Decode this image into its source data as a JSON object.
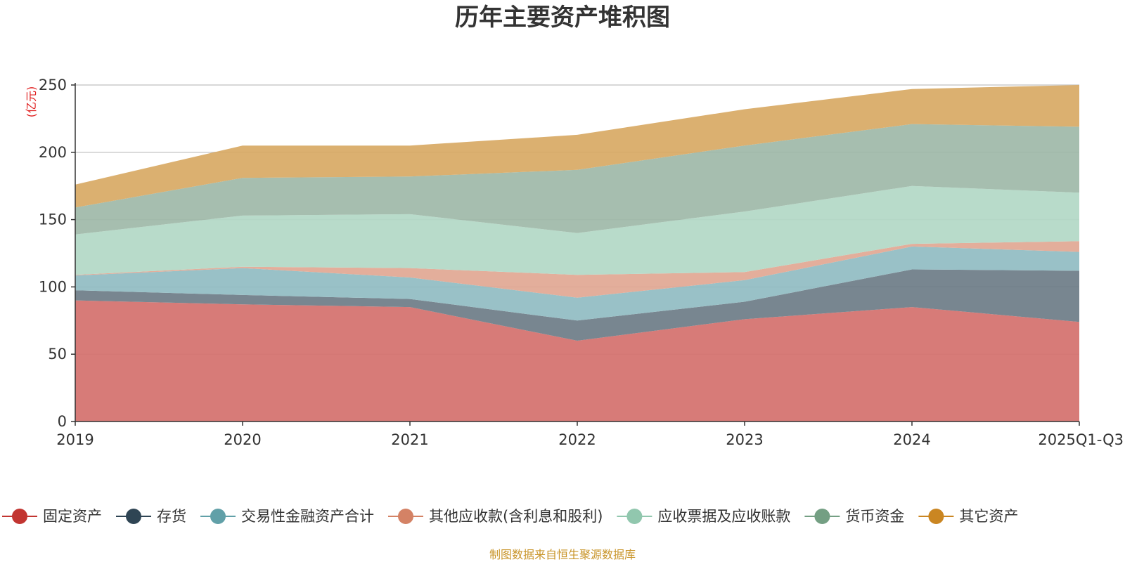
{
  "chart_data": {
    "type": "area",
    "stacked": true,
    "title": "历年主要资产堆积图",
    "ylabel": "(亿元)",
    "xlabel": "",
    "categories": [
      "2019",
      "2020",
      "2021",
      "2022",
      "2023",
      "2024",
      "2025Q1-Q3"
    ],
    "ylim": [
      0,
      250
    ],
    "yticks": [
      0,
      50,
      100,
      150,
      200,
      250
    ],
    "grid": true,
    "legend_position": "bottom",
    "series": [
      {
        "name": "固定资产",
        "color": "#c23531",
        "area_color": "#d4706c",
        "values": [
          90,
          87,
          85,
          60,
          76,
          85,
          74
        ]
      },
      {
        "name": "存货",
        "color": "#2f4554",
        "area_color": "#6d7c87",
        "values": [
          7.5,
          7,
          6,
          15,
          13,
          28,
          38
        ]
      },
      {
        "name": "交易性金融资产合计",
        "color": "#61a0a8",
        "area_color": "#90bcc2",
        "values": [
          11,
          20,
          16,
          17,
          16,
          17,
          14
        ]
      },
      {
        "name": "其他应收款(含利息和股利)",
        "color": "#d48265",
        "area_color": "#e1a793",
        "values": [
          0.5,
          1,
          7,
          17,
          6,
          2,
          8
        ]
      },
      {
        "name": "应收票据及应收账款",
        "color": "#91c7ae",
        "area_color": "#b2d8c6",
        "values": [
          30,
          38,
          40,
          31,
          45,
          43,
          36
        ]
      },
      {
        "name": "货币资金",
        "color": "#749f83",
        "area_color": "#9eb9a8",
        "values": [
          20,
          28,
          28,
          47,
          49,
          46,
          49
        ]
      },
      {
        "name": "其它资产",
        "color": "#ca8622",
        "area_color": "#d8a964",
        "values": [
          17,
          24,
          23,
          26,
          27,
          26,
          31
        ]
      }
    ]
  },
  "source": "制图数据来自恒生聚源数据库"
}
